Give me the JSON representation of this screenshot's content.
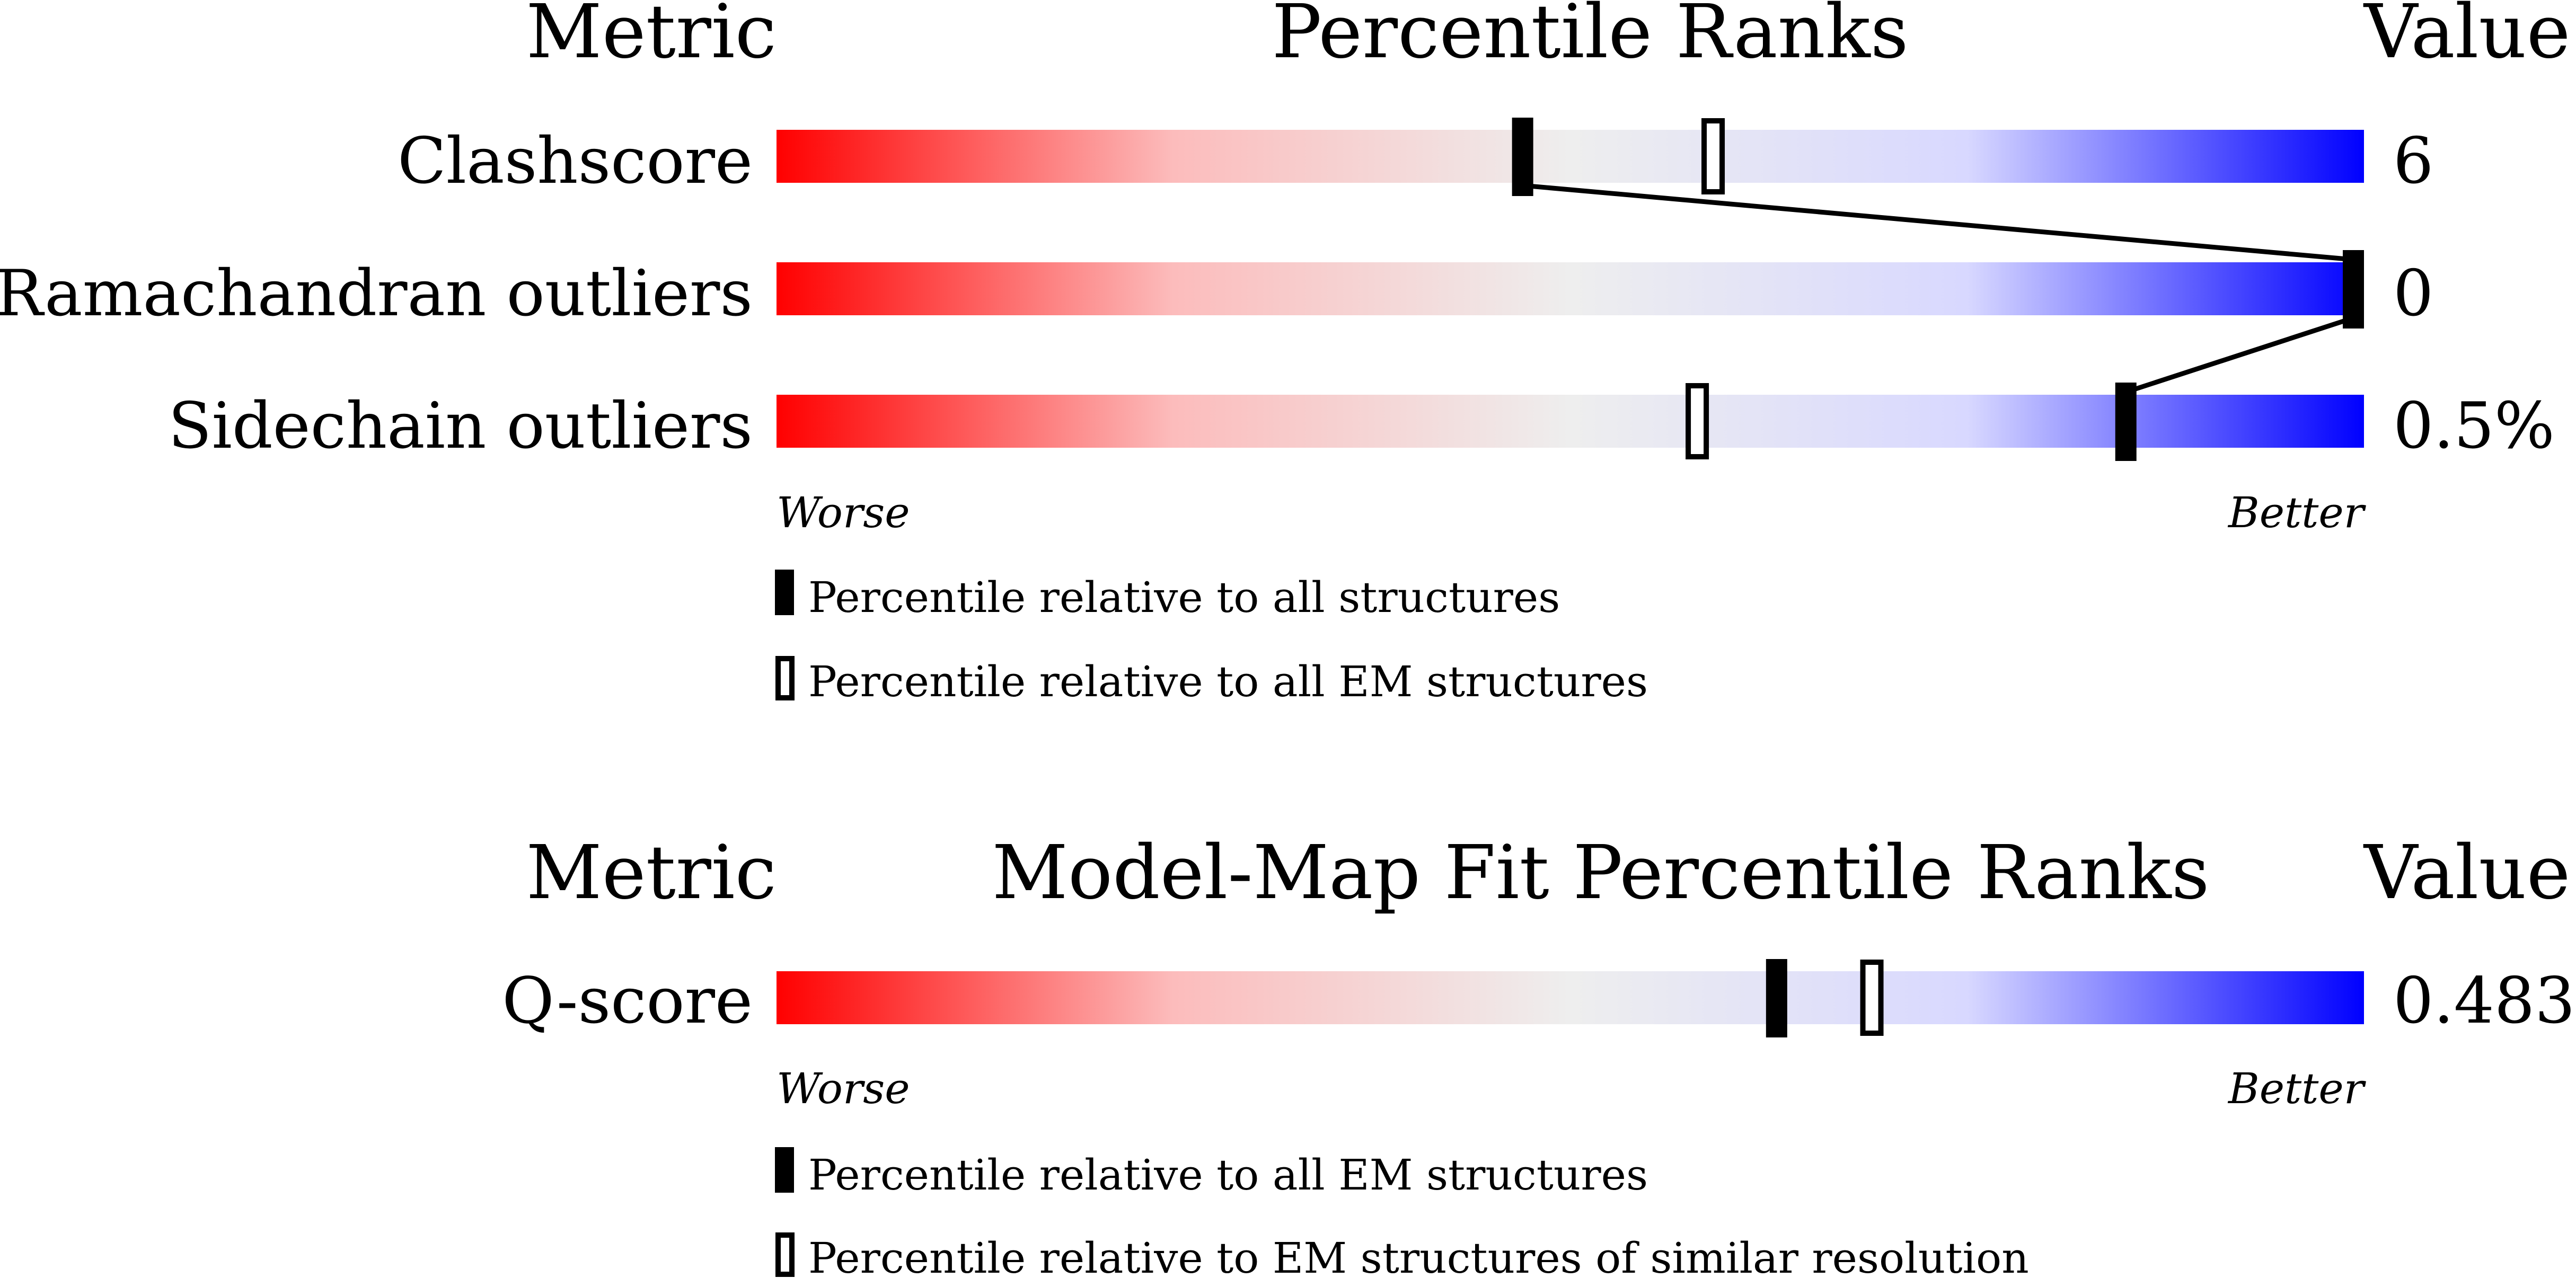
{
  "chart_data": [
    {
      "type": "bar",
      "headers": {
        "metric": "Metric",
        "title": "Percentile Ranks",
        "value": "Value"
      },
      "axis": {
        "min": 0,
        "max": 100,
        "worse_label": "Worse",
        "better_label": "Better"
      },
      "series": [
        {
          "name": "Percentile relative to all structures",
          "marker": "filled"
        },
        {
          "name": "Percentile relative to all EM structures",
          "marker": "outline"
        }
      ],
      "rows": [
        {
          "metric": "Clashscore",
          "value": "6",
          "percentile_all": 47,
          "percentile_em": 59
        },
        {
          "metric": "Ramachandran outliers",
          "value": "0",
          "percentile_all": 100,
          "percentile_em": null
        },
        {
          "metric": "Sidechain outliers",
          "value": "0.5%",
          "percentile_all": 85,
          "percentile_em": 58
        }
      ],
      "connect_filled_markers": true
    },
    {
      "type": "bar",
      "headers": {
        "metric": "Metric",
        "title": "Model-Map Fit Percentile Ranks",
        "value": "Value"
      },
      "axis": {
        "min": 0,
        "max": 100,
        "worse_label": "Worse",
        "better_label": "Better"
      },
      "series": [
        {
          "name": "Percentile relative to all EM structures",
          "marker": "filled"
        },
        {
          "name": "Percentile relative to EM structures of similar resolution",
          "marker": "outline"
        }
      ],
      "rows": [
        {
          "metric": "Q-score",
          "value": "0.483",
          "percentile_all": 63,
          "percentile_em": 69
        }
      ],
      "connect_filled_markers": false
    }
  ],
  "colors": {
    "worse": "#ff0000",
    "middle": "#eeeeee",
    "light_blue": "#dcdcff",
    "better": "#0000ff",
    "marker": "#000000"
  }
}
